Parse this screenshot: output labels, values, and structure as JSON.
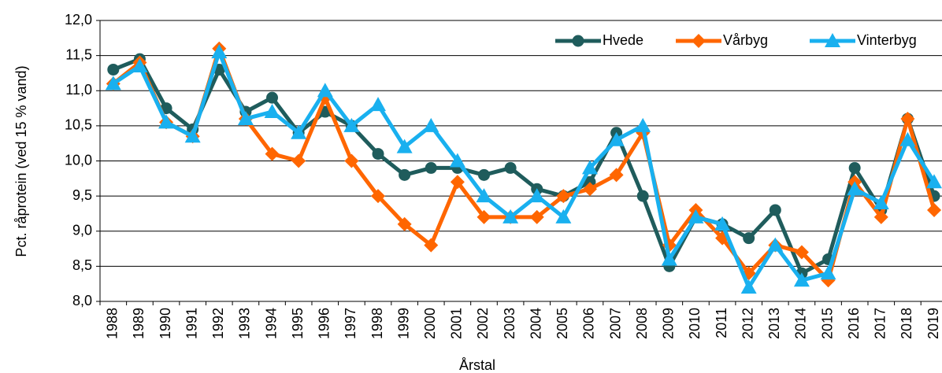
{
  "chart_data": {
    "type": "line",
    "y_label": "Pct. råprotein (ved 15 % vand)",
    "x_label": "Årstal",
    "categories": [
      "1988",
      "1989",
      "1990",
      "1991",
      "1992",
      "1993",
      "1994",
      "1995",
      "1996",
      "1997",
      "1998",
      "1999",
      "2000",
      "2001",
      "2002",
      "2003",
      "2004",
      "2005",
      "2006",
      "2007",
      "2008",
      "2009",
      "2010",
      "2011",
      "2012",
      "2013",
      "2014",
      "2015",
      "2016",
      "2017",
      "2018",
      "2019"
    ],
    "series": [
      {
        "name": "Hvede",
        "color": "#1f5c5c",
        "marker": "circle",
        "values": [
          11.3,
          11.45,
          10.75,
          10.45,
          11.3,
          10.7,
          10.9,
          10.4,
          10.7,
          10.5,
          10.1,
          9.8,
          9.9,
          9.9,
          9.8,
          9.9,
          9.6,
          9.5,
          9.7,
          10.4,
          9.5,
          8.5,
          9.2,
          9.1,
          8.9,
          9.3,
          8.4,
          8.6,
          9.9,
          9.3,
          10.6,
          9.5
        ]
      },
      {
        "name": "Vårbyg",
        "color": "#ff6600",
        "marker": "diamond",
        "values": [
          11.1,
          11.4,
          10.55,
          10.35,
          11.6,
          10.6,
          10.1,
          10.0,
          10.9,
          10.0,
          9.5,
          9.1,
          8.8,
          9.7,
          9.2,
          9.2,
          9.2,
          9.5,
          9.6,
          9.8,
          10.4,
          8.8,
          9.3,
          8.9,
          8.4,
          8.8,
          8.7,
          8.3,
          9.7,
          9.2,
          10.6,
          9.3
        ]
      },
      {
        "name": "Vinterbyg",
        "color": "#19b0ef",
        "marker": "triangle",
        "values": [
          11.1,
          11.35,
          10.55,
          10.35,
          11.55,
          10.6,
          10.7,
          10.4,
          11.0,
          10.5,
          10.8,
          10.2,
          10.5,
          10.0,
          9.5,
          9.2,
          9.5,
          9.2,
          9.9,
          10.3,
          10.5,
          8.6,
          9.2,
          9.1,
          8.2,
          8.8,
          8.3,
          8.4,
          9.6,
          9.4,
          10.3,
          9.7
        ]
      }
    ],
    "ylim": [
      8,
      12
    ],
    "yticks": [
      {
        "value": 8,
        "label": "8,0"
      },
      {
        "value": 8.5,
        "label": "8,5"
      },
      {
        "value": 9,
        "label": "9,0"
      },
      {
        "value": 9.5,
        "label": "9,5"
      },
      {
        "value": 10,
        "label": "10,0"
      },
      {
        "value": 10.5,
        "label": "10,5"
      },
      {
        "value": 11,
        "label": "11,0"
      },
      {
        "value": 11.5,
        "label": "11,5"
      },
      {
        "value": 12,
        "label": "12,0"
      }
    ],
    "grid": true,
    "legend": "top-right"
  }
}
